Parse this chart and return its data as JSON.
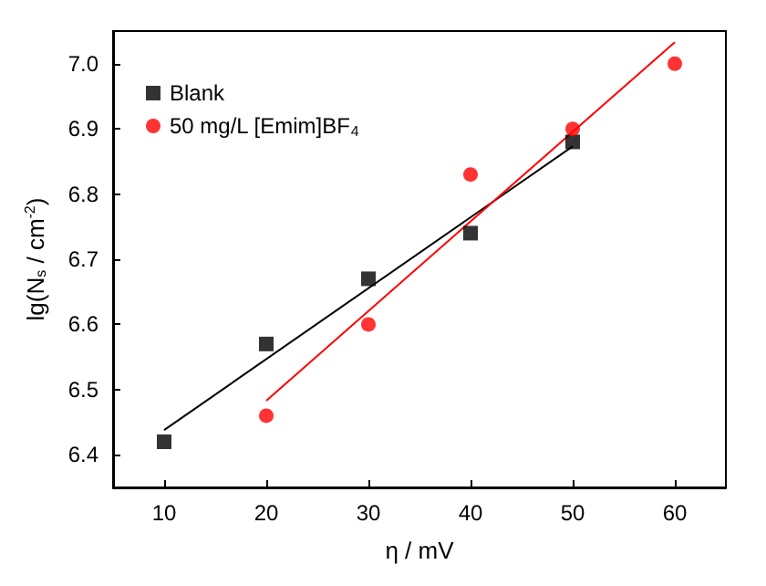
{
  "chart_data": {
    "type": "scatter",
    "xlabel": "η / mV",
    "ylabel": "lg(N$_{s}$ / cm$^{-2}$)",
    "series": [
      {
        "name": "Blank",
        "color": "#000000",
        "marker": "square",
        "x": [
          10,
          20,
          30,
          40,
          50
        ],
        "values": [
          6.42,
          6.57,
          6.67,
          6.74,
          6.88
        ]
      },
      {
        "name": "50 mg/L [Emim]BF$_{4}$",
        "color": "#ff0000",
        "marker": "circle",
        "x": [
          20,
          30,
          40,
          50,
          60
        ],
        "values": [
          6.46,
          6.6,
          6.83,
          6.9,
          7.0
        ]
      },
      {
        "type": "line",
        "color": "#000000",
        "marker": "none",
        "x": [
          10,
          50
        ],
        "values": [
          6.438,
          6.873
        ]
      },
      {
        "type": "line",
        "color": "#ff0000",
        "marker": "none",
        "x": [
          20,
          60
        ],
        "values": [
          6.483,
          7.033
        ]
      }
    ],
    "xlim": [
      5,
      65
    ],
    "xticks": [
      10,
      20,
      30,
      40,
      50,
      60
    ],
    "ylim": [
      6.35,
      7.05
    ],
    "yticks": [
      6.4,
      6.5,
      6.6,
      6.7,
      6.8,
      6.9,
      {
        "value": 7,
        "label": "7.0"
      }
    ],
    "grid": false,
    "legend": "top left"
  }
}
